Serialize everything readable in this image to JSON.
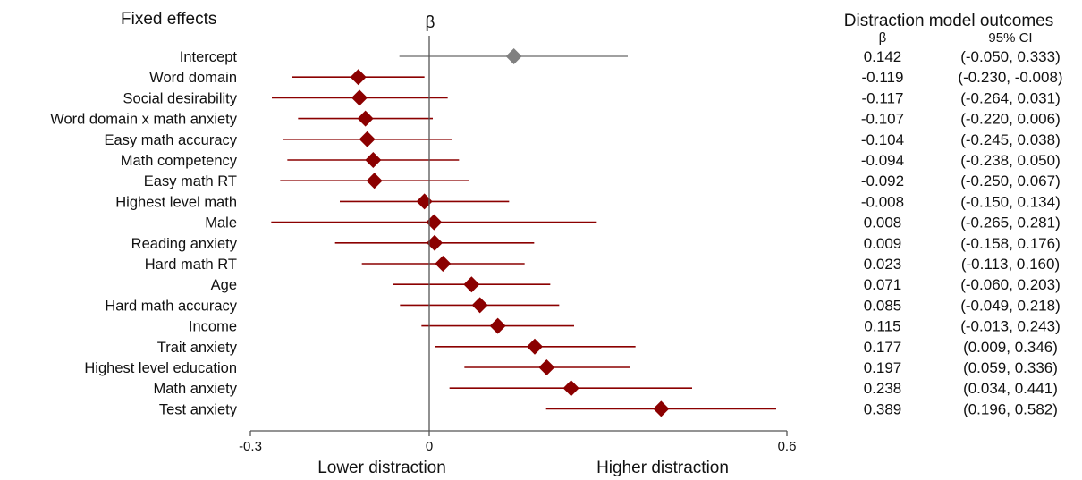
{
  "chart_data": {
    "type": "forest",
    "left_header": "Fixed effects",
    "plot_header": "β",
    "right_header": "Distraction model outcomes",
    "column_headers": [
      "β",
      "95% CI"
    ],
    "x_axis": {
      "range": [
        -0.3,
        0.6
      ],
      "ticks": [
        {
          "value": -0.3,
          "label": "-0.3"
        },
        {
          "value": 0,
          "label": "0"
        },
        {
          "value": 0.6,
          "label": "0.6"
        }
      ],
      "reference_line": 0,
      "lower_label": "Lower distraction",
      "higher_label": "Higher distraction"
    },
    "colors": {
      "intercept": "#808080",
      "effect": "#8b0000",
      "axis": "#555555"
    },
    "rows": [
      {
        "label": "Intercept",
        "beta": 0.142,
        "lo": -0.05,
        "hi": 0.333,
        "beta_text": "0.142",
        "ci_text": "(-0.050, 0.333)",
        "kind": "intercept"
      },
      {
        "label": "Word domain",
        "beta": -0.119,
        "lo": -0.23,
        "hi": -0.008,
        "beta_text": "-0.119",
        "ci_text": "(-0.230, -0.008)",
        "kind": "effect"
      },
      {
        "label": "Social desirability",
        "beta": -0.117,
        "lo": -0.264,
        "hi": 0.031,
        "beta_text": "-0.117",
        "ci_text": "(-0.264, 0.031)",
        "kind": "effect"
      },
      {
        "label": "Word domain x math anxiety",
        "beta": -0.107,
        "lo": -0.22,
        "hi": 0.006,
        "beta_text": "-0.107",
        "ci_text": "(-0.220, 0.006)",
        "kind": "effect"
      },
      {
        "label": "Easy math accuracy",
        "beta": -0.104,
        "lo": -0.245,
        "hi": 0.038,
        "beta_text": "-0.104",
        "ci_text": "(-0.245, 0.038)",
        "kind": "effect"
      },
      {
        "label": "Math competency",
        "beta": -0.094,
        "lo": -0.238,
        "hi": 0.05,
        "beta_text": "-0.094",
        "ci_text": "(-0.238, 0.050)",
        "kind": "effect"
      },
      {
        "label": "Easy math RT",
        "beta": -0.092,
        "lo": -0.25,
        "hi": 0.067,
        "beta_text": "-0.092",
        "ci_text": "(-0.250, 0.067)",
        "kind": "effect"
      },
      {
        "label": "Highest level math",
        "beta": -0.008,
        "lo": -0.15,
        "hi": 0.134,
        "beta_text": "-0.008",
        "ci_text": "(-0.150, 0.134)",
        "kind": "effect"
      },
      {
        "label": "Male",
        "beta": 0.008,
        "lo": -0.265,
        "hi": 0.281,
        "beta_text": "0.008",
        "ci_text": "(-0.265, 0.281)",
        "kind": "effect"
      },
      {
        "label": "Reading anxiety",
        "beta": 0.009,
        "lo": -0.158,
        "hi": 0.176,
        "beta_text": "0.009",
        "ci_text": "(-0.158, 0.176)",
        "kind": "effect"
      },
      {
        "label": "Hard math RT",
        "beta": 0.023,
        "lo": -0.113,
        "hi": 0.16,
        "beta_text": "0.023",
        "ci_text": "(-0.113, 0.160)",
        "kind": "effect"
      },
      {
        "label": "Age",
        "beta": 0.071,
        "lo": -0.06,
        "hi": 0.203,
        "beta_text": "0.071",
        "ci_text": "(-0.060, 0.203)",
        "kind": "effect"
      },
      {
        "label": "Hard math accuracy",
        "beta": 0.085,
        "lo": -0.049,
        "hi": 0.218,
        "beta_text": "0.085",
        "ci_text": "(-0.049, 0.218)",
        "kind": "effect"
      },
      {
        "label": "Income",
        "beta": 0.115,
        "lo": -0.013,
        "hi": 0.243,
        "beta_text": "0.115",
        "ci_text": "(-0.013, 0.243)",
        "kind": "effect"
      },
      {
        "label": "Trait anxiety",
        "beta": 0.177,
        "lo": 0.009,
        "hi": 0.346,
        "beta_text": "0.177",
        "ci_text": "(0.009, 0.346)",
        "kind": "effect"
      },
      {
        "label": "Highest level education",
        "beta": 0.197,
        "lo": 0.059,
        "hi": 0.336,
        "beta_text": "0.197",
        "ci_text": "(0.059, 0.336)",
        "kind": "effect"
      },
      {
        "label": "Math anxiety",
        "beta": 0.238,
        "lo": 0.034,
        "hi": 0.441,
        "beta_text": "0.238",
        "ci_text": "(0.034, 0.441)",
        "kind": "effect"
      },
      {
        "label": "Test anxiety",
        "beta": 0.389,
        "lo": 0.196,
        "hi": 0.582,
        "beta_text": "0.389",
        "ci_text": "(0.196, 0.582)",
        "kind": "effect"
      }
    ]
  }
}
